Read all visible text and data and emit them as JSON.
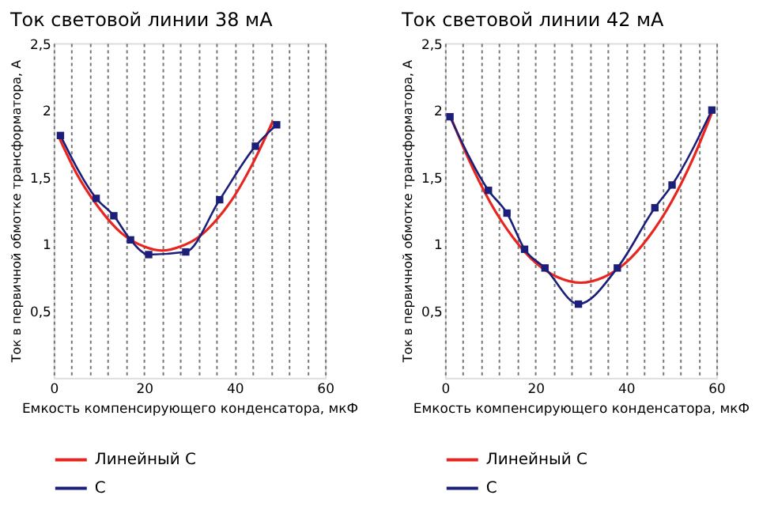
{
  "chart_data": [
    {
      "type": "line",
      "title": "Ток световой линии 38 мА",
      "xlabel": "Емкость компенсирующего конденсатора, мкФ",
      "ylabel": "Ток в первичной обмотке трансформатора, А",
      "xlim": [
        0,
        60
      ],
      "xticks": [
        0,
        {
          "value": 4,
          "label": null
        },
        {
          "value": 8,
          "label": null
        },
        {
          "value": 12,
          "label": null
        },
        {
          "value": 16,
          "label": null
        },
        20,
        {
          "value": 24,
          "label": null
        },
        {
          "value": 28,
          "label": null
        },
        {
          "value": 32,
          "label": null
        },
        {
          "value": 36,
          "label": null
        },
        40,
        {
          "value": 44,
          "label": null
        },
        {
          "value": 48,
          "label": null
        },
        {
          "value": 52,
          "label": null
        },
        {
          "value": 56,
          "label": null
        },
        60
      ],
      "ylim": [
        0,
        2.5
      ],
      "yticks": [
        {
          "value": 0.5,
          "label": "0,5"
        },
        1,
        {
          "value": 1.5,
          "label": "1,5"
        },
        2,
        {
          "value": 2.5,
          "label": "2,5"
        }
      ],
      "grid": "x",
      "legend": "bottom",
      "line_style": "solid",
      "series": [
        {
          "name": "Линейный С",
          "color": "#e8251f",
          "marker": "none",
          "x": [
            1,
            5,
            10,
            15,
            20,
            24,
            28,
            32,
            36,
            40,
            44,
            48.5
          ],
          "values": [
            1.81,
            1.53,
            1.27,
            1.08,
            0.98,
            0.95,
            0.98,
            1.05,
            1.18,
            1.36,
            1.6,
            1.92
          ]
        },
        {
          "name": "С",
          "color": "#1b1f7a",
          "marker": "square",
          "x": [
            1.5,
            9.4,
            13.3,
            17,
            21,
            29.2,
            36.7,
            44.6,
            49.3
          ],
          "values": [
            1.81,
            1.34,
            1.21,
            1.03,
            0.92,
            0.94,
            1.33,
            1.73,
            1.89
          ]
        }
      ]
    },
    {
      "type": "line",
      "title": "Ток световой линии 42 мА",
      "xlabel": "Емкость компенсирующего конденсатора, мкФ",
      "ylabel": "Ток в первичной обмотке трансформатора, А",
      "xlim": [
        0,
        60
      ],
      "xticks": [
        0,
        {
          "value": 4,
          "label": null
        },
        {
          "value": 8,
          "label": null
        },
        {
          "value": 12,
          "label": null
        },
        {
          "value": 16,
          "label": null
        },
        20,
        {
          "value": 24,
          "label": null
        },
        {
          "value": 28,
          "label": null
        },
        {
          "value": 32,
          "label": null
        },
        {
          "value": 36,
          "label": null
        },
        40,
        {
          "value": 44,
          "label": null
        },
        {
          "value": 48,
          "label": null
        },
        {
          "value": 52,
          "label": null
        },
        {
          "value": 56,
          "label": null
        },
        60
      ],
      "ylim": [
        0,
        2.5
      ],
      "yticks": [
        {
          "value": 0.5,
          "label": "0,5"
        },
        1,
        {
          "value": 1.5,
          "label": "1,5"
        },
        2,
        {
          "value": 2.5,
          "label": "2,5"
        }
      ],
      "grid": "x",
      "legend": "bottom",
      "line_style": "solid",
      "series": [
        {
          "name": "Линейный С",
          "color": "#e8251f",
          "marker": "none",
          "x": [
            1,
            5,
            10,
            15,
            20,
            25,
            30,
            35,
            40,
            45,
            50,
            55,
            59
          ],
          "values": [
            1.97,
            1.65,
            1.31,
            1.05,
            0.86,
            0.75,
            0.71,
            0.75,
            0.86,
            1.05,
            1.31,
            1.65,
            1.98
          ]
        },
        {
          "name": "С",
          "color": "#1b1f7a",
          "marker": "square",
          "x": [
            1.1,
            9.6,
            13.7,
            17.6,
            22.1,
            29.5,
            38.1,
            46.4,
            50.2,
            59
          ],
          "values": [
            1.95,
            1.4,
            1.23,
            0.96,
            0.82,
            0.55,
            0.82,
            1.27,
            1.44,
            2.0
          ]
        }
      ]
    }
  ]
}
